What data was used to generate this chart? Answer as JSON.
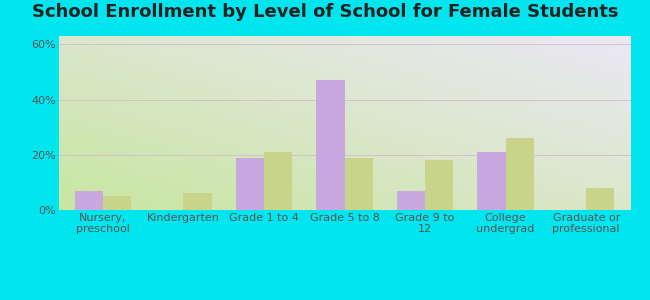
{
  "title": "School Enrollment by Level of School for Female Students",
  "categories": [
    "Nursery,\npreschool",
    "Kindergarten",
    "Grade 1 to 4",
    "Grade 5 to 8",
    "Grade 9 to\n12",
    "College\nundergrad",
    "Graduate or\nprofessional"
  ],
  "hankinson": [
    7,
    0,
    19,
    47,
    7,
    21,
    0
  ],
  "north_dakota": [
    5,
    6,
    21,
    19,
    18,
    26,
    8
  ],
  "hankinson_color": "#c9a8e0",
  "north_dakota_color": "#c8d48a",
  "background_color": "#00e5ee",
  "grad_color_bottom_left": "#c8e6a0",
  "grad_color_top_right": "#ece8f5",
  "ylabel_ticks": [
    "0%",
    "20%",
    "40%",
    "60%"
  ],
  "yticks": [
    0,
    20,
    40,
    60
  ],
  "ylim": [
    0,
    63
  ],
  "bar_width": 0.35,
  "title_fontsize": 13,
  "tick_fontsize": 8,
  "legend_fontsize": 9.5
}
